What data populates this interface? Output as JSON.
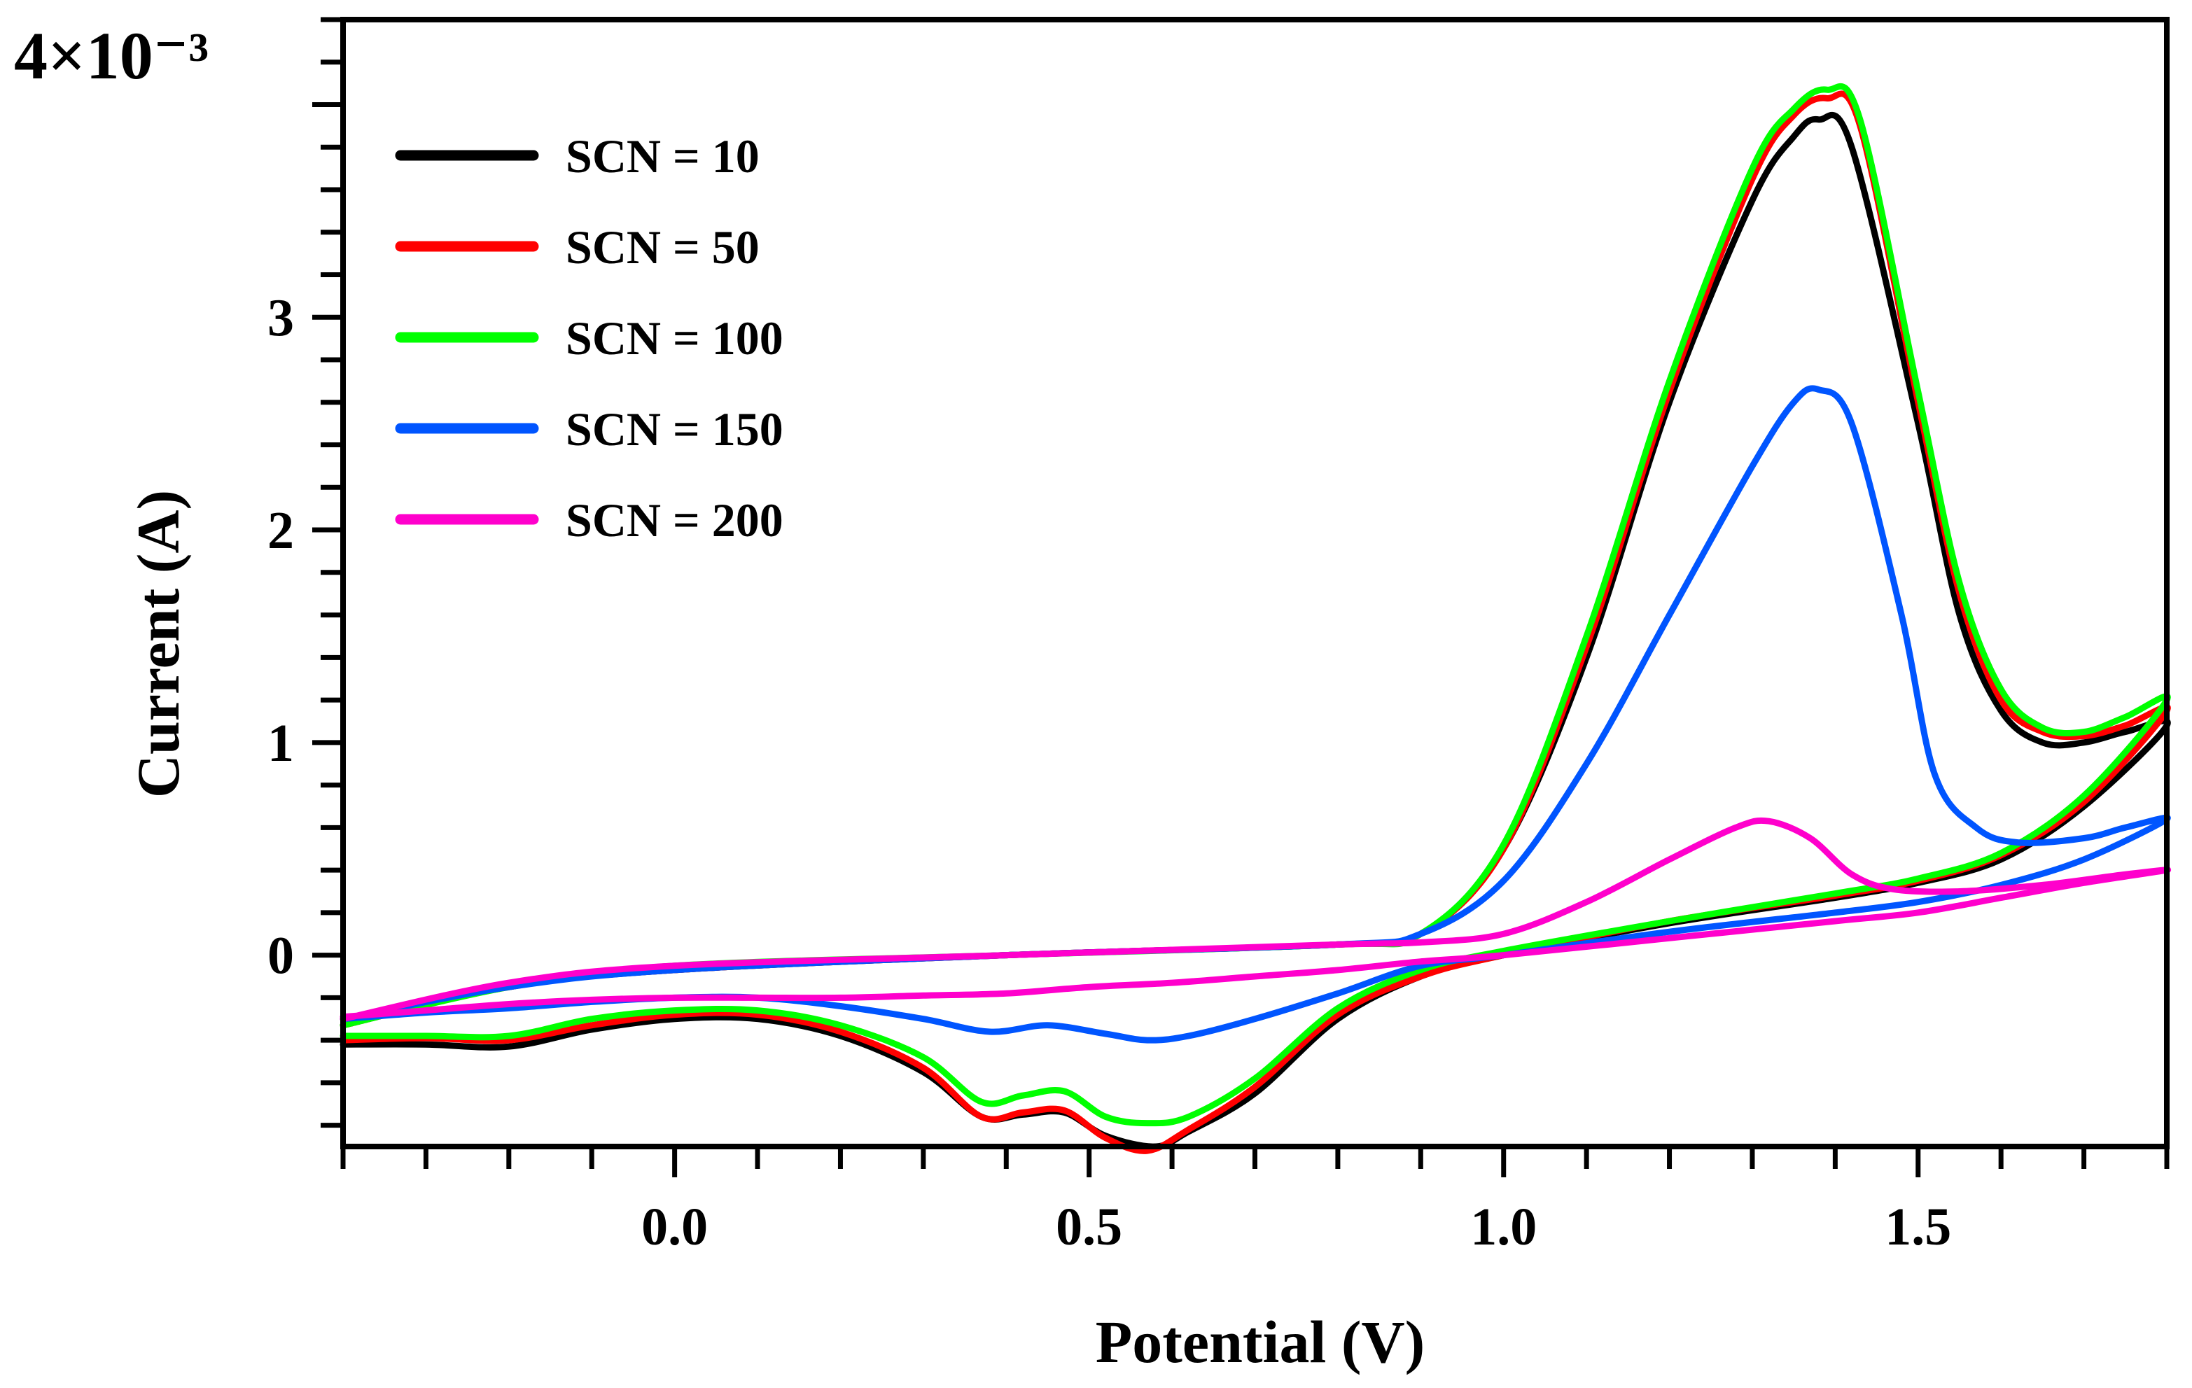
{
  "chart_data": {
    "type": "line",
    "title": "",
    "xlabel": "Potential (V)",
    "ylabel": "Current (A)",
    "y_multiplier": "4×10⁻³",
    "xlim": [
      -0.4,
      1.8
    ],
    "ylim": [
      -0.9,
      4.4
    ],
    "x_major_ticks": [
      0.0,
      0.5,
      1.0,
      1.5
    ],
    "x_tick_labels": [
      "0.0",
      "0.5",
      "1.0",
      "1.5"
    ],
    "y_major_ticks": [
      0,
      1,
      2,
      3
    ],
    "y_tick_labels": [
      "0",
      "1",
      "2",
      "3"
    ],
    "legend_position": "top-left",
    "series": [
      {
        "name": "SCN = 10",
        "color": "#000000",
        "forward": [
          [
            -0.4,
            -0.33
          ],
          [
            -0.2,
            -0.15
          ],
          [
            0.0,
            -0.07
          ],
          [
            0.4,
            0.0
          ],
          [
            0.8,
            0.05
          ],
          [
            0.9,
            0.1
          ],
          [
            1.0,
            0.5
          ],
          [
            1.1,
            1.4
          ],
          [
            1.2,
            2.6
          ],
          [
            1.3,
            3.55
          ],
          [
            1.35,
            3.85
          ],
          [
            1.38,
            3.93
          ],
          [
            1.42,
            3.8
          ],
          [
            1.5,
            2.5
          ],
          [
            1.55,
            1.6
          ],
          [
            1.6,
            1.15
          ],
          [
            1.65,
            1.0
          ],
          [
            1.7,
            1.0
          ],
          [
            1.75,
            1.05
          ],
          [
            1.8,
            1.08
          ]
        ],
        "reverse": [
          [
            1.8,
            1.08
          ],
          [
            1.7,
            0.7
          ],
          [
            1.6,
            0.45
          ],
          [
            1.5,
            0.34
          ],
          [
            1.4,
            0.27
          ],
          [
            1.2,
            0.15
          ],
          [
            1.0,
            0.0
          ],
          [
            0.9,
            -0.1
          ],
          [
            0.8,
            -0.3
          ],
          [
            0.7,
            -0.65
          ],
          [
            0.62,
            -0.83
          ],
          [
            0.58,
            -0.9
          ],
          [
            0.52,
            -0.85
          ],
          [
            0.47,
            -0.74
          ],
          [
            0.42,
            -0.75
          ],
          [
            0.37,
            -0.76
          ],
          [
            0.3,
            -0.55
          ],
          [
            0.2,
            -0.38
          ],
          [
            0.1,
            -0.3
          ],
          [
            0.0,
            -0.3
          ],
          [
            -0.1,
            -0.35
          ],
          [
            -0.2,
            -0.43
          ],
          [
            -0.3,
            -0.42
          ],
          [
            -0.4,
            -0.42
          ]
        ]
      },
      {
        "name": "SCN = 50",
        "color": "#ff0000",
        "forward": [
          [
            -0.4,
            -0.33
          ],
          [
            -0.2,
            -0.15
          ],
          [
            0.0,
            -0.07
          ],
          [
            0.4,
            0.0
          ],
          [
            0.8,
            0.05
          ],
          [
            0.9,
            0.1
          ],
          [
            1.0,
            0.5
          ],
          [
            1.1,
            1.45
          ],
          [
            1.2,
            2.65
          ],
          [
            1.3,
            3.65
          ],
          [
            1.35,
            3.95
          ],
          [
            1.39,
            4.03
          ],
          [
            1.43,
            3.9
          ],
          [
            1.5,
            2.6
          ],
          [
            1.55,
            1.7
          ],
          [
            1.6,
            1.2
          ],
          [
            1.65,
            1.05
          ],
          [
            1.7,
            1.03
          ],
          [
            1.75,
            1.08
          ],
          [
            1.8,
            1.15
          ]
        ],
        "reverse": [
          [
            1.8,
            1.15
          ],
          [
            1.7,
            0.72
          ],
          [
            1.6,
            0.47
          ],
          [
            1.5,
            0.35
          ],
          [
            1.4,
            0.28
          ],
          [
            1.2,
            0.16
          ],
          [
            1.0,
            0.0
          ],
          [
            0.9,
            -0.1
          ],
          [
            0.8,
            -0.28
          ],
          [
            0.7,
            -0.62
          ],
          [
            0.62,
            -0.82
          ],
          [
            0.57,
            -0.92
          ],
          [
            0.52,
            -0.86
          ],
          [
            0.47,
            -0.73
          ],
          [
            0.42,
            -0.74
          ],
          [
            0.37,
            -0.76
          ],
          [
            0.3,
            -0.53
          ],
          [
            0.2,
            -0.36
          ],
          [
            0.1,
            -0.28
          ],
          [
            0.0,
            -0.28
          ],
          [
            -0.1,
            -0.33
          ],
          [
            -0.2,
            -0.4
          ],
          [
            -0.3,
            -0.39
          ],
          [
            -0.4,
            -0.4
          ]
        ]
      },
      {
        "name": "SCN = 100",
        "color": "#00ff00",
        "forward": [
          [
            -0.4,
            -0.33
          ],
          [
            -0.2,
            -0.15
          ],
          [
            0.0,
            -0.05
          ],
          [
            0.4,
            0.0
          ],
          [
            0.8,
            0.05
          ],
          [
            0.9,
            0.1
          ],
          [
            1.0,
            0.52
          ],
          [
            1.1,
            1.5
          ],
          [
            1.2,
            2.7
          ],
          [
            1.3,
            3.7
          ],
          [
            1.35,
            3.98
          ],
          [
            1.39,
            4.07
          ],
          [
            1.43,
            3.93
          ],
          [
            1.5,
            2.65
          ],
          [
            1.55,
            1.75
          ],
          [
            1.6,
            1.25
          ],
          [
            1.65,
            1.07
          ],
          [
            1.7,
            1.05
          ],
          [
            1.75,
            1.12
          ],
          [
            1.8,
            1.2
          ]
        ],
        "reverse": [
          [
            1.8,
            1.2
          ],
          [
            1.7,
            0.75
          ],
          [
            1.6,
            0.48
          ],
          [
            1.5,
            0.36
          ],
          [
            1.4,
            0.29
          ],
          [
            1.2,
            0.16
          ],
          [
            1.0,
            0.02
          ],
          [
            0.9,
            -0.07
          ],
          [
            0.8,
            -0.25
          ],
          [
            0.7,
            -0.58
          ],
          [
            0.62,
            -0.76
          ],
          [
            0.57,
            -0.79
          ],
          [
            0.52,
            -0.76
          ],
          [
            0.47,
            -0.64
          ],
          [
            0.42,
            -0.66
          ],
          [
            0.37,
            -0.69
          ],
          [
            0.3,
            -0.48
          ],
          [
            0.2,
            -0.33
          ],
          [
            0.1,
            -0.26
          ],
          [
            0.0,
            -0.26
          ],
          [
            -0.1,
            -0.3
          ],
          [
            -0.2,
            -0.38
          ],
          [
            -0.3,
            -0.38
          ],
          [
            -0.4,
            -0.38
          ]
        ]
      },
      {
        "name": "SCN = 150",
        "color": "#0055ff",
        "forward": [
          [
            -0.4,
            -0.3
          ],
          [
            -0.2,
            -0.15
          ],
          [
            0.0,
            -0.07
          ],
          [
            0.4,
            0.0
          ],
          [
            0.8,
            0.05
          ],
          [
            0.9,
            0.1
          ],
          [
            1.0,
            0.35
          ],
          [
            1.1,
            0.9
          ],
          [
            1.2,
            1.6
          ],
          [
            1.3,
            2.3
          ],
          [
            1.35,
            2.6
          ],
          [
            1.38,
            2.66
          ],
          [
            1.42,
            2.5
          ],
          [
            1.48,
            1.6
          ],
          [
            1.52,
            0.85
          ],
          [
            1.57,
            0.6
          ],
          [
            1.62,
            0.53
          ],
          [
            1.7,
            0.55
          ],
          [
            1.75,
            0.6
          ],
          [
            1.8,
            0.64
          ]
        ],
        "reverse": [
          [
            1.8,
            0.64
          ],
          [
            1.7,
            0.45
          ],
          [
            1.6,
            0.33
          ],
          [
            1.5,
            0.25
          ],
          [
            1.4,
            0.2
          ],
          [
            1.2,
            0.11
          ],
          [
            1.0,
            0.0
          ],
          [
            0.9,
            -0.05
          ],
          [
            0.8,
            -0.18
          ],
          [
            0.7,
            -0.3
          ],
          [
            0.62,
            -0.38
          ],
          [
            0.57,
            -0.4
          ],
          [
            0.52,
            -0.37
          ],
          [
            0.45,
            -0.33
          ],
          [
            0.38,
            -0.36
          ],
          [
            0.3,
            -0.3
          ],
          [
            0.2,
            -0.24
          ],
          [
            0.1,
            -0.2
          ],
          [
            0.0,
            -0.2
          ],
          [
            -0.1,
            -0.22
          ],
          [
            -0.2,
            -0.25
          ],
          [
            -0.3,
            -0.27
          ],
          [
            -0.4,
            -0.3
          ]
        ]
      },
      {
        "name": "SCN = 200",
        "color": "#ff00cc",
        "forward": [
          [
            -0.4,
            -0.3
          ],
          [
            -0.2,
            -0.13
          ],
          [
            0.0,
            -0.05
          ],
          [
            0.4,
            0.0
          ],
          [
            0.8,
            0.05
          ],
          [
            0.9,
            0.06
          ],
          [
            1.0,
            0.1
          ],
          [
            1.1,
            0.25
          ],
          [
            1.2,
            0.45
          ],
          [
            1.28,
            0.6
          ],
          [
            1.32,
            0.63
          ],
          [
            1.37,
            0.55
          ],
          [
            1.42,
            0.38
          ],
          [
            1.47,
            0.31
          ],
          [
            1.55,
            0.3
          ],
          [
            1.65,
            0.33
          ],
          [
            1.75,
            0.38
          ],
          [
            1.8,
            0.4
          ]
        ],
        "reverse": [
          [
            1.8,
            0.4
          ],
          [
            1.7,
            0.34
          ],
          [
            1.6,
            0.27
          ],
          [
            1.5,
            0.2
          ],
          [
            1.4,
            0.16
          ],
          [
            1.2,
            0.08
          ],
          [
            1.0,
            0.0
          ],
          [
            0.9,
            -0.03
          ],
          [
            0.8,
            -0.07
          ],
          [
            0.7,
            -0.1
          ],
          [
            0.6,
            -0.13
          ],
          [
            0.5,
            -0.15
          ],
          [
            0.4,
            -0.18
          ],
          [
            0.3,
            -0.19
          ],
          [
            0.2,
            -0.2
          ],
          [
            0.1,
            -0.2
          ],
          [
            0.0,
            -0.2
          ],
          [
            -0.1,
            -0.21
          ],
          [
            -0.2,
            -0.23
          ],
          [
            -0.3,
            -0.26
          ],
          [
            -0.4,
            -0.29
          ]
        ]
      }
    ]
  }
}
